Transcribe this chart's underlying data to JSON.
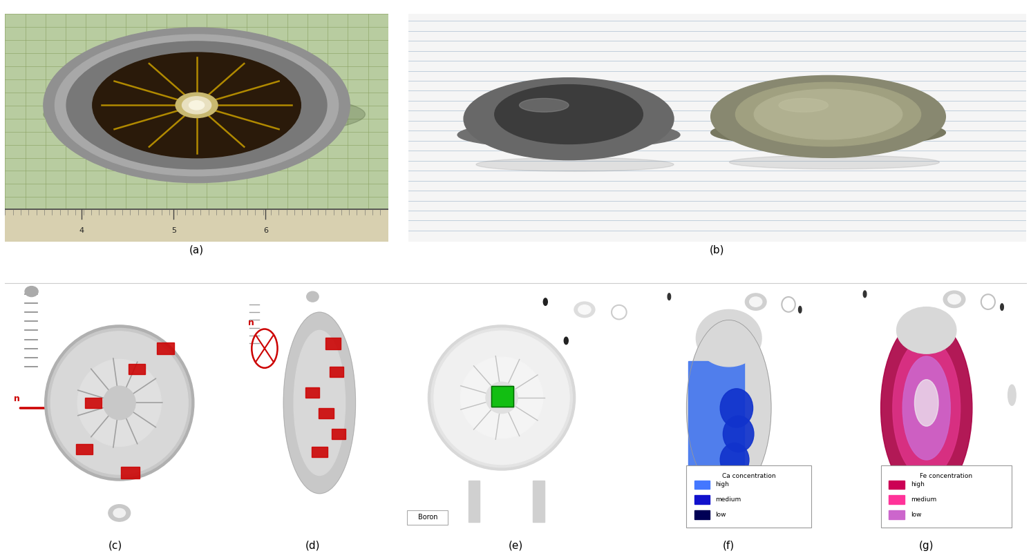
{
  "figure_size": [
    14.92,
    8.11
  ],
  "dpi": 100,
  "bg_color": "#ffffff",
  "labels": [
    "(a)",
    "(b)",
    "(c)",
    "(d)",
    "(e)",
    "(f)",
    "(g)"
  ],
  "label_fontsize": 11,
  "ca_legend": {
    "title": "Ca concentration",
    "entries": [
      {
        "label": "high",
        "color": "#4477ff"
      },
      {
        "label": "medium",
        "color": "#1111cc"
      },
      {
        "label": "low",
        "color": "#000055"
      }
    ]
  },
  "fe_legend": {
    "title": "Fe concentration",
    "entries": [
      {
        "label": "high",
        "color": "#cc0055"
      },
      {
        "label": "medium",
        "color": "#ff3399"
      },
      {
        "label": "low",
        "color": "#cc66cc"
      }
    ]
  },
  "boron_label": "Boron",
  "red_color": "#cc0000",
  "n_color": "#cc0000"
}
